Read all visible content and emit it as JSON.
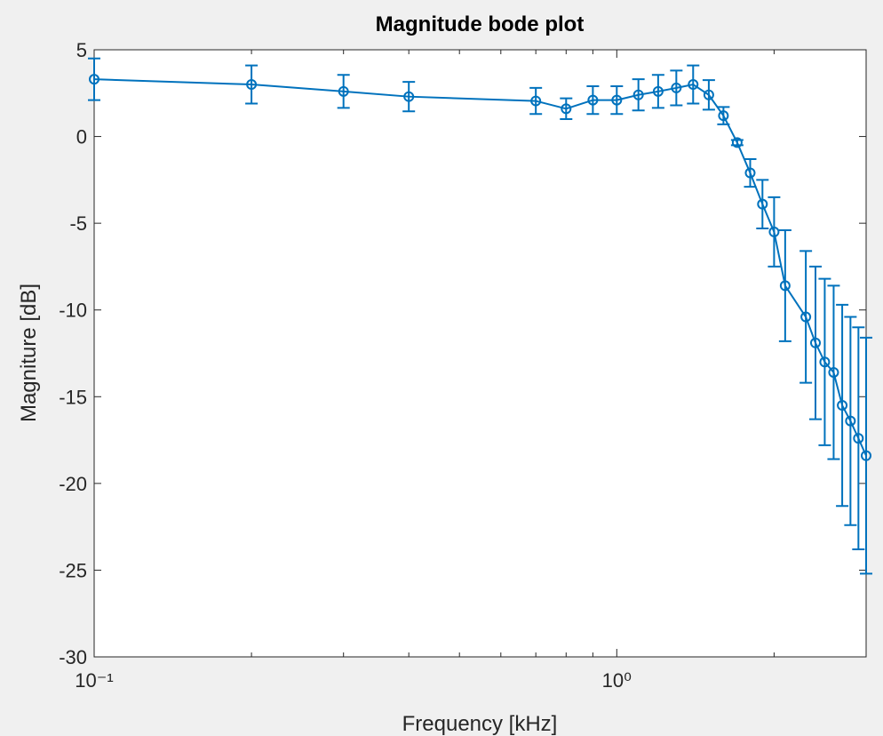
{
  "chart_data": {
    "type": "errorbar",
    "title": "Magnitude bode plot",
    "x_label": "Frequency [kHz]",
    "y_label": "Magniture [dB]",
    "x": [
      0.1,
      0.2,
      0.3,
      0.4,
      0.7,
      0.8,
      0.9,
      1.0,
      1.1,
      1.2,
      1.3,
      1.4,
      1.5,
      1.6,
      1.7,
      1.8,
      1.9,
      2.0,
      2.1,
      2.3,
      2.4,
      2.5,
      2.6,
      2.7,
      2.8,
      2.9,
      3.0
    ],
    "series": [
      {
        "color": "#0072bd",
        "values": [
          3.3,
          3.0,
          2.6,
          2.3,
          2.05,
          1.6,
          2.1,
          2.1,
          2.4,
          2.6,
          2.8,
          3.0,
          2.4,
          1.2,
          -0.35,
          -2.1,
          -3.9,
          -5.5,
          -8.6,
          -10.4,
          -11.9,
          -13.0,
          -13.6,
          -15.5,
          -16.4,
          -17.4,
          -18.4
        ],
        "errors": [
          1.2,
          1.1,
          0.95,
          0.85,
          0.75,
          0.6,
          0.8,
          0.8,
          0.9,
          0.95,
          1.0,
          1.1,
          0.85,
          0.5,
          0.15,
          0.8,
          1.4,
          2.0,
          3.2,
          3.8,
          4.4,
          4.8,
          5.0,
          5.8,
          6.0,
          6.4,
          6.8
        ]
      }
    ],
    "xscale": "log",
    "xlim": [
      0.1,
      3
    ],
    "xticks": [
      {
        "value": 0.1,
        "label": "10⁻¹"
      },
      {
        "value": 1,
        "label": "10⁰"
      }
    ],
    "xminorticks": [
      0.2,
      0.3,
      0.4,
      0.5,
      0.6,
      0.7,
      0.8,
      0.9,
      2,
      3
    ],
    "ylim": [
      -30,
      5
    ],
    "yticks": [
      -30,
      -25,
      -20,
      -15,
      -10,
      -5,
      0,
      5
    ]
  }
}
